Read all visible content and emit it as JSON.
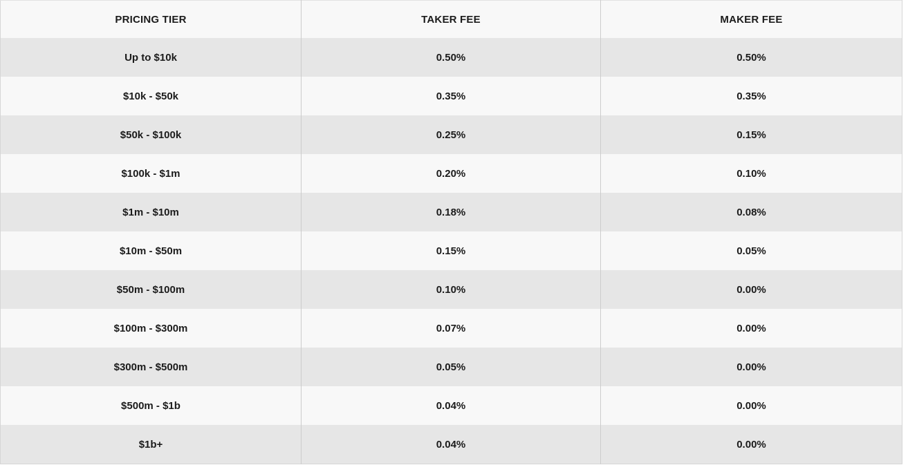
{
  "table": {
    "columns": [
      {
        "key": "tier",
        "label": "PRICING TIER"
      },
      {
        "key": "taker",
        "label": "TAKER FEE"
      },
      {
        "key": "maker",
        "label": "MAKER FEE"
      }
    ],
    "rows": [
      {
        "tier": "Up to $10k",
        "taker": "0.50%",
        "maker": "0.50%"
      },
      {
        "tier": "$10k - $50k",
        "taker": "0.35%",
        "maker": "0.35%"
      },
      {
        "tier": "$50k - $100k",
        "taker": "0.25%",
        "maker": "0.15%"
      },
      {
        "tier": "$100k - $1m",
        "taker": "0.20%",
        "maker": "0.10%"
      },
      {
        "tier": "$1m - $10m",
        "taker": "0.18%",
        "maker": "0.08%"
      },
      {
        "tier": "$10m - $50m",
        "taker": "0.15%",
        "maker": "0.05%"
      },
      {
        "tier": "$50m - $100m",
        "taker": "0.10%",
        "maker": "0.00%"
      },
      {
        "tier": "$100m - $300m",
        "taker": "0.07%",
        "maker": "0.00%"
      },
      {
        "tier": "$300m - $500m",
        "taker": "0.05%",
        "maker": "0.00%"
      },
      {
        "tier": "$500m - $1b",
        "taker": "0.04%",
        "maker": "0.00%"
      },
      {
        "tier": "$1b+",
        "taker": "0.04%",
        "maker": "0.00%"
      }
    ],
    "colors": {
      "row_shaded": "#e6e6e6",
      "row_light": "#f8f8f8",
      "divider": "#cccccc",
      "outer_border": "#d6d6d6",
      "text": "#1b1b1b"
    }
  },
  "chart_data": {
    "type": "table",
    "title": "",
    "columns": [
      "PRICING TIER",
      "TAKER FEE",
      "MAKER FEE"
    ],
    "rows": [
      [
        "Up to $10k",
        "0.50%",
        "0.50%"
      ],
      [
        "$10k - $50k",
        "0.35%",
        "0.35%"
      ],
      [
        "$50k - $100k",
        "0.25%",
        "0.15%"
      ],
      [
        "$100k - $1m",
        "0.20%",
        "0.10%"
      ],
      [
        "$1m - $10m",
        "0.18%",
        "0.08%"
      ],
      [
        "$10m - $50m",
        "0.15%",
        "0.05%"
      ],
      [
        "$50m - $100m",
        "0.10%",
        "0.00%"
      ],
      [
        "$100m - $300m",
        "0.07%",
        "0.00%"
      ],
      [
        "$300m - $500m",
        "0.05%",
        "0.00%"
      ],
      [
        "$500m - $1b",
        "0.04%",
        "0.00%"
      ],
      [
        "$1b+",
        "0.04%",
        "0.00%"
      ]
    ],
    "layout_hints": {
      "alternating_row_shading": true,
      "column_dividers": true,
      "text_alignment": "center",
      "header_style": "bold-uppercase"
    }
  }
}
